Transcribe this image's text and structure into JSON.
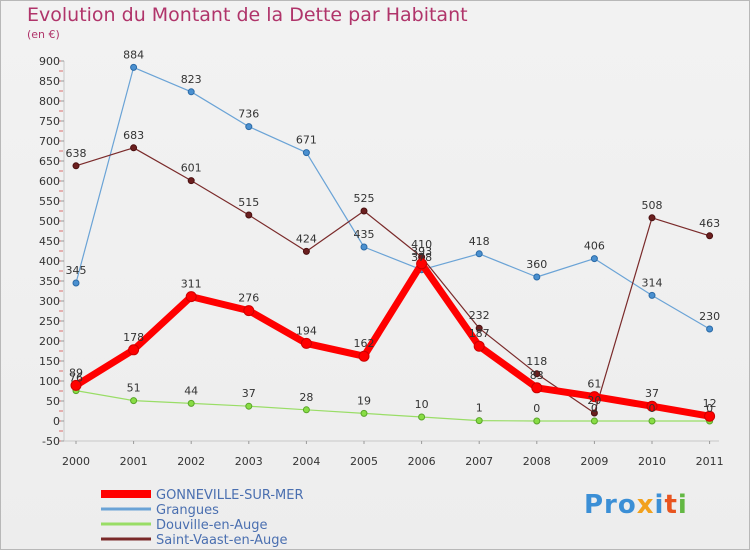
{
  "title": "Evolution du Montant de la Dette par Habitant",
  "subtitle": "(en €)",
  "logo": [
    "Pro",
    "x",
    "i",
    "t",
    "i"
  ],
  "chart_data": {
    "type": "line",
    "x": [
      "2000",
      "2001",
      "2002",
      "2003",
      "2004",
      "2005",
      "2006",
      "2007",
      "2008",
      "2009",
      "2010",
      "2011"
    ],
    "ylim": [
      -50,
      900
    ],
    "yticks": [
      -50,
      0,
      50,
      100,
      150,
      200,
      250,
      300,
      350,
      400,
      450,
      500,
      550,
      600,
      650,
      700,
      750,
      800,
      850,
      900
    ],
    "grid": false,
    "legend_position": "bottom-left",
    "series": [
      {
        "name": "GONNEVILLE-SUR-MER",
        "color": "#ff0000",
        "values": [
          89,
          178,
          311,
          276,
          194,
          162,
          393,
          187,
          83,
          61,
          37,
          12
        ],
        "labels": [
          "89",
          "178",
          "311",
          "276",
          "194",
          "162",
          "393",
          "187",
          "83",
          "61",
          "37",
          "12"
        ]
      },
      {
        "name": "Grangues",
        "color": "#6aa3d6",
        "values": [
          345,
          884,
          823,
          736,
          671,
          435,
          378,
          418,
          360,
          406,
          314,
          230
        ],
        "labels": [
          "345",
          "884",
          "823",
          "736",
          "671",
          "435",
          "378",
          "418",
          "360",
          "406",
          "314",
          "230"
        ]
      },
      {
        "name": "Douville-en-Auge",
        "color": "#99dd66",
        "values": [
          76,
          51,
          44,
          37,
          28,
          19,
          10,
          1,
          0,
          0,
          0,
          0
        ],
        "labels": [
          "76",
          "51",
          "44",
          "37",
          "28",
          "19",
          "10",
          "1",
          "0",
          "0",
          "0",
          "0"
        ]
      },
      {
        "name": "Saint-Vaast-en-Auge",
        "color": "#7a2a2a",
        "values": [
          638,
          683,
          601,
          515,
          424,
          525,
          410,
          232,
          118,
          20,
          508,
          463
        ],
        "labels": [
          "638",
          "683",
          "601",
          "515",
          "424",
          "525",
          "410",
          "232",
          "118",
          "20",
          "508",
          "463"
        ]
      }
    ]
  }
}
